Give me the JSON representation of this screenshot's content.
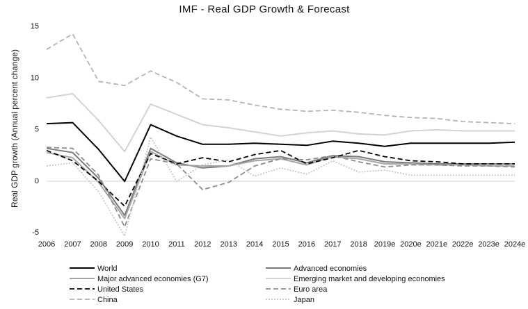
{
  "chart_data": {
    "type": "line",
    "title": "IMF - Real GDP Growth & Forecast",
    "xlabel": "",
    "ylabel": "Real GDP growth (Annual percent change)",
    "ylim": [
      -5,
      15
    ],
    "yticks": [
      -5,
      0,
      5,
      10,
      15
    ],
    "grid": false,
    "legend_position": "bottom",
    "categories": [
      "2006",
      "2007",
      "2008",
      "2009",
      "2010",
      "2011",
      "2012",
      "2013",
      "2014",
      "2015",
      "2016",
      "2017",
      "2018",
      "2019e",
      "2020e",
      "2021e",
      "2022e",
      "2023e",
      "2024e"
    ],
    "series": [
      {
        "name": "World",
        "color": "#000000",
        "style": "solid",
        "values": [
          5.5,
          5.6,
          3.0,
          -0.1,
          5.4,
          4.3,
          3.5,
          3.5,
          3.6,
          3.5,
          3.4,
          3.8,
          3.6,
          3.3,
          3.6,
          3.6,
          3.6,
          3.6,
          3.7
        ]
      },
      {
        "name": "Advanced economies",
        "color": "#7a7a7a",
        "style": "solid",
        "values": [
          3.1,
          2.7,
          0.2,
          -3.4,
          3.1,
          1.7,
          1.2,
          1.4,
          2.1,
          2.3,
          1.7,
          2.4,
          2.3,
          1.8,
          1.7,
          1.6,
          1.6,
          1.6,
          1.6
        ]
      },
      {
        "name": "Major advanced economies (G7)",
        "color": "#a6a6a6",
        "style": "solid",
        "values": [
          2.7,
          2.2,
          -0.2,
          -3.7,
          2.8,
          1.5,
          1.4,
          1.4,
          1.9,
          2.1,
          1.5,
          2.3,
          2.1,
          1.6,
          1.6,
          1.5,
          1.5,
          1.4,
          1.4
        ]
      },
      {
        "name": "Emerging market and developing economies",
        "color": "#d3d3d3",
        "style": "solid",
        "values": [
          8.0,
          8.4,
          5.8,
          2.8,
          7.4,
          6.4,
          5.4,
          5.1,
          4.7,
          4.3,
          4.6,
          4.8,
          4.5,
          4.4,
          4.8,
          4.9,
          4.8,
          4.8,
          4.8
        ]
      },
      {
        "name": "United States",
        "color": "#000000",
        "style": "dash",
        "values": [
          2.9,
          1.9,
          -0.1,
          -2.5,
          2.6,
          1.6,
          2.2,
          1.8,
          2.5,
          2.9,
          1.6,
          2.2,
          2.9,
          2.3,
          1.9,
          1.8,
          1.6,
          1.6,
          1.6
        ]
      },
      {
        "name": "Euro area",
        "color": "#8c8c8c",
        "style": "dash",
        "values": [
          3.2,
          3.1,
          0.5,
          -4.5,
          2.1,
          1.6,
          -0.9,
          -0.2,
          1.4,
          2.1,
          2.0,
          2.4,
          1.8,
          1.3,
          1.5,
          1.5,
          1.4,
          1.4,
          1.3
        ]
      },
      {
        "name": "China",
        "color": "#b4b4b4",
        "style": "dash",
        "values": [
          12.7,
          14.2,
          9.6,
          9.2,
          10.6,
          9.5,
          7.9,
          7.8,
          7.3,
          6.9,
          6.7,
          6.8,
          6.6,
          6.3,
          6.1,
          6.0,
          5.7,
          5.6,
          5.5
        ]
      },
      {
        "name": "Japan",
        "color": "#c8c8c8",
        "style": "dot",
        "values": [
          1.4,
          1.7,
          -1.1,
          -5.4,
          4.2,
          -0.1,
          1.5,
          2.0,
          0.4,
          1.2,
          0.6,
          1.9,
          0.8,
          1.0,
          0.5,
          0.5,
          0.5,
          0.5,
          0.5
        ]
      }
    ]
  }
}
